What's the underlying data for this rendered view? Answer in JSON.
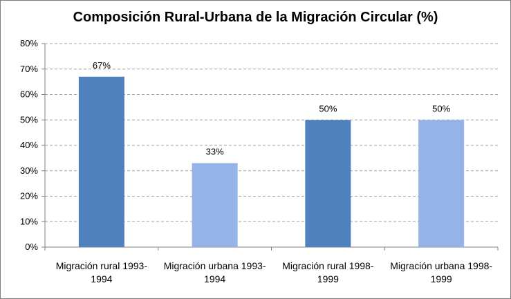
{
  "chart_data": {
    "type": "bar",
    "title": "Composición Rural-Urbana de la Migración Circular (%)",
    "xlabel": "",
    "ylabel": "",
    "categories": [
      [
        "Migración rural 1993-",
        "1994"
      ],
      [
        "Migración urbana 1993-",
        "1994"
      ],
      [
        "Migración rural 1998-",
        "1999"
      ],
      [
        "Migración urbana 1998-",
        "1999"
      ]
    ],
    "values": [
      67,
      33,
      50,
      50
    ],
    "data_labels": [
      "67%",
      "33%",
      "50%",
      "50%"
    ],
    "ylim": [
      0,
      80
    ],
    "yticks": [
      0,
      10,
      20,
      30,
      40,
      50,
      60,
      70,
      80
    ],
    "ytick_labels": [
      "0%",
      "10%",
      "20%",
      "30%",
      "40%",
      "50%",
      "60%",
      "70%",
      "80%"
    ],
    "bar_colors": [
      "#4f81bd",
      "#95b3e7",
      "#4f81bd",
      "#95b3e7"
    ],
    "grid": true,
    "legend": "none"
  }
}
